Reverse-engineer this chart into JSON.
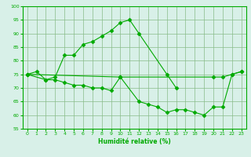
{
  "upper_x": [
    0,
    1,
    2,
    3,
    4,
    5,
    6,
    7,
    8,
    9,
    10,
    11,
    12,
    15,
    16
  ],
  "upper_y": [
    75,
    76,
    73,
    74,
    82,
    82,
    86,
    87,
    89,
    91,
    94,
    95,
    90,
    75,
    70
  ],
  "lower_x": [
    0,
    2,
    3,
    4,
    5,
    6,
    7,
    8,
    9,
    10,
    12,
    13,
    14,
    15,
    16,
    17,
    18,
    19,
    20,
    21,
    22,
    23
  ],
  "lower_y": [
    75,
    73,
    73,
    72,
    71,
    71,
    70,
    70,
    69,
    74,
    65,
    64,
    63,
    61,
    62,
    62,
    61,
    60,
    63,
    63,
    75,
    76
  ],
  "flat_x": [
    0,
    10,
    20,
    21,
    22,
    23
  ],
  "flat_y": [
    75,
    74,
    74,
    74,
    75,
    76
  ],
  "line_color": "#00aa00",
  "bg_color": "#d8f0e8",
  "grid_color": "#88bb88",
  "xlabel": "Humidité relative (%)",
  "ylim": [
    55,
    100
  ],
  "xlim_min": -0.5,
  "xlim_max": 23.5,
  "yticks": [
    55,
    60,
    65,
    70,
    75,
    80,
    85,
    90,
    95,
    100
  ],
  "xticks": [
    0,
    1,
    2,
    3,
    4,
    5,
    6,
    7,
    8,
    9,
    10,
    11,
    12,
    13,
    14,
    15,
    16,
    17,
    18,
    19,
    20,
    21,
    22,
    23
  ],
  "xlabel_fontsize": 5.5,
  "tick_fontsize": 4.5
}
